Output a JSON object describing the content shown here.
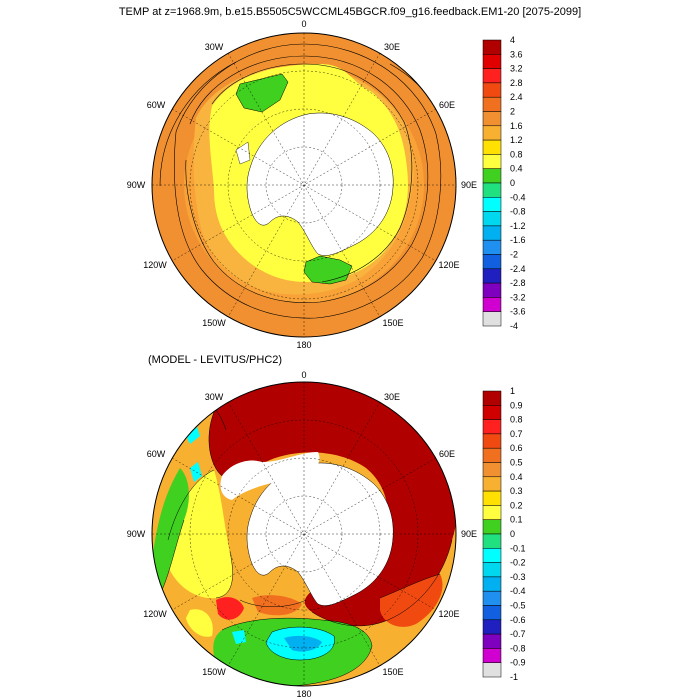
{
  "title": "TEMP at z=1968.9m, b.e15.B5505C5WCCML45BGCR.f09_g16.feedback.EM1-20 [2075-2099]",
  "subtitle": "(MODEL - LEVITUS/PHC2)",
  "longitude_labels": [
    "0",
    "30E",
    "60E",
    "90E",
    "120E",
    "150E",
    "180",
    "150W",
    "120W",
    "90W",
    "60W",
    "30W"
  ],
  "colorbar_top": {
    "labels": [
      "4",
      "3.6",
      "3.2",
      "2.8",
      "2.4",
      "2",
      "1.6",
      "1.2",
      "0.8",
      "0.4",
      "0",
      "-0.4",
      "-0.8",
      "-1.2",
      "-1.6",
      "-2",
      "-2.4",
      "-2.8",
      "-3.2",
      "-3.6",
      "-4"
    ],
    "colors": [
      "#b00000",
      "#e00000",
      "#ff2020",
      "#f04a10",
      "#f07020",
      "#f09030",
      "#f8b030",
      "#ffe000",
      "#ffff40",
      "#40d020",
      "#20e080",
      "#00ffff",
      "#00d8f0",
      "#00b0f0",
      "#2090f0",
      "#1060e0",
      "#2020c0",
      "#8000c0",
      "#d000d0",
      "#e0e0e0",
      "#707070"
    ]
  },
  "colorbar_bottom": {
    "labels": [
      "1",
      "0.9",
      "0.8",
      "0.7",
      "0.6",
      "0.5",
      "0.4",
      "0.3",
      "0.2",
      "0.1",
      "0",
      "-0.1",
      "-0.2",
      "-0.3",
      "-0.4",
      "-0.5",
      "-0.6",
      "-0.7",
      "-0.8",
      "-0.9",
      "-1"
    ],
    "colors": [
      "#b00000",
      "#d00000",
      "#ff2020",
      "#f04a10",
      "#f07020",
      "#f09030",
      "#f8b030",
      "#ffe000",
      "#ffff40",
      "#40d020",
      "#20e080",
      "#00ffff",
      "#00d8f0",
      "#00b0f0",
      "#2090f0",
      "#1060e0",
      "#2020c0",
      "#8000c0",
      "#d000d0",
      "#e0e0e0",
      "#707070"
    ]
  }
}
